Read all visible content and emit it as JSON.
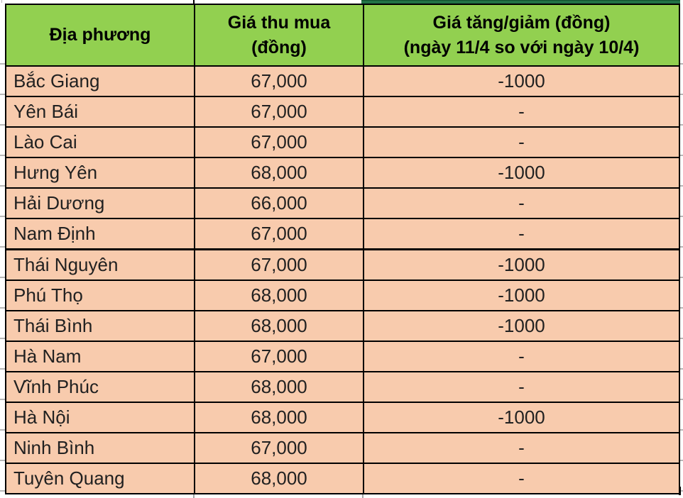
{
  "app": {
    "context": "spreadsheet price table (Vietnamese livestock purchase prices by locality)"
  },
  "colors": {
    "header_fill": "#92D050",
    "row_fill": "#F8CBAD",
    "accent_bar": "#217346",
    "border": "#000000",
    "gridline": "#b7b7b7",
    "text": "#212121"
  },
  "table": {
    "header": {
      "locality": "Địa phương",
      "price_line1": "Giá thu mua",
      "price_line2": "(đồng)",
      "change_line1": "Giá tăng/giảm (đồng)",
      "change_line2": "(ngày 11/4 so với ngày 10/4)"
    },
    "rows": [
      {
        "locality": "Bắc Giang",
        "price": "67,000",
        "change": "-1000"
      },
      {
        "locality": "Yên Bái",
        "price": "67,000",
        "change": "-"
      },
      {
        "locality": "Lào Cai",
        "price": "67,000",
        "change": "-"
      },
      {
        "locality": "Hưng Yên",
        "price": "68,000",
        "change": "-1000"
      },
      {
        "locality": "Hải Dương",
        "price": "66,000",
        "change": "-"
      },
      {
        "locality": "Nam Định",
        "price": "67,000",
        "change": "-"
      },
      {
        "locality": "Thái Nguyên",
        "price": "67,000",
        "change": "-1000"
      },
      {
        "locality": "Phú Thọ",
        "price": "68,000",
        "change": "-1000"
      },
      {
        "locality": "Thái Bình",
        "price": "68,000",
        "change": "-1000"
      },
      {
        "locality": "Hà Nam",
        "price": "67,000",
        "change": "-"
      },
      {
        "locality": "Vĩnh Phúc",
        "price": "68,000",
        "change": "-"
      },
      {
        "locality": "Hà Nội",
        "price": "68,000",
        "change": "-1000"
      },
      {
        "locality": "Ninh Bình",
        "price": "67,000",
        "change": "-"
      },
      {
        "locality": "Tuyên Quang",
        "price": "68,000",
        "change": "-"
      }
    ]
  }
}
